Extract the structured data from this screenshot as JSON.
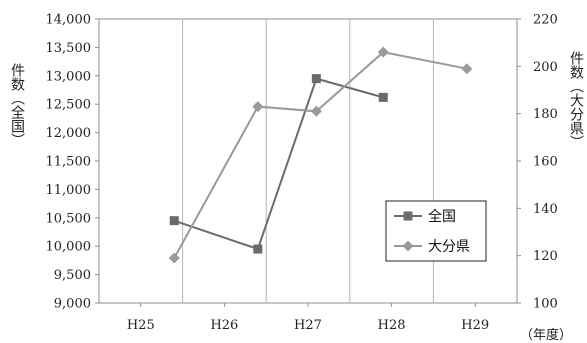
{
  "chart_data": {
    "type": "line",
    "categories": [
      "H25",
      "H26",
      "H27",
      "H28",
      "H29"
    ],
    "x_unit_label": "（年度）",
    "left_axis": {
      "label": "件数（全国）",
      "range": [
        9000,
        14000
      ],
      "ticks": [
        "9,000",
        "9,500",
        "10,000",
        "10,500",
        "11,000",
        "11,500",
        "12,000",
        "12,500",
        "13,000",
        "13,500",
        "14,000"
      ],
      "tick_values": [
        9000,
        9500,
        10000,
        10500,
        11000,
        11500,
        12000,
        12500,
        13000,
        13500,
        14000
      ]
    },
    "right_axis": {
      "label": "件数（大分県）",
      "range": [
        100,
        220
      ],
      "ticks": [
        "100",
        "120",
        "140",
        "160",
        "180",
        "200",
        "220"
      ],
      "tick_values": [
        100,
        120,
        140,
        160,
        180,
        200,
        220
      ]
    },
    "series": [
      {
        "name": "全国",
        "axis": "left",
        "marker": "square",
        "color": "#6b6b6b",
        "points": [
          {
            "x": 0.4,
            "y": 10450
          },
          {
            "x": 1.4,
            "y": 9950
          },
          {
            "x": 2.1,
            "y": 12950
          },
          {
            "x": 2.9,
            "y": 12620
          }
        ]
      },
      {
        "name": "大分県",
        "axis": "right",
        "marker": "diamond",
        "color": "#9a9a9a",
        "points": [
          {
            "x": 0.4,
            "y": 119
          },
          {
            "x": 1.4,
            "y": 183
          },
          {
            "x": 2.1,
            "y": 181
          },
          {
            "x": 2.9,
            "y": 206
          },
          {
            "x": 3.9,
            "y": 199
          }
        ]
      }
    ],
    "grid": "vertical",
    "legend": "center-right"
  }
}
